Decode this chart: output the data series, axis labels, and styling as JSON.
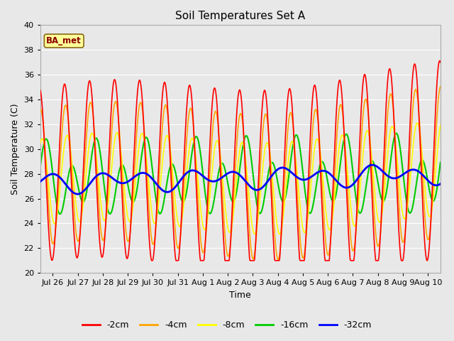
{
  "title": "Soil Temperatures Set A",
  "xlabel": "Time",
  "ylabel": "Soil Temperature (C)",
  "ylim": [
    20,
    40
  ],
  "yticks": [
    20,
    22,
    24,
    26,
    28,
    30,
    32,
    34,
    36,
    38,
    40
  ],
  "annotation": "BA_met",
  "line_colors": {
    "-2cm": "#FF0000",
    "-4cm": "#FFA500",
    "-8cm": "#FFFF00",
    "-16cm": "#00CC00",
    "-32cm": "#0000FF"
  },
  "line_widths": {
    "-2cm": 1.2,
    "-4cm": 1.2,
    "-8cm": 1.2,
    "-16cm": 1.5,
    "-32cm": 2.0
  },
  "bg_color": "#E8E8E8",
  "plot_bg_color": "#E8E8E8",
  "grid_color": "#FFFFFF",
  "xtick_labels": [
    "Jul 26",
    "Jul 27",
    "Jul 28",
    "Jul 29",
    "Jul 30",
    "Jul 31",
    "Aug 1",
    "Aug 2",
    "Aug 3",
    "Aug 4",
    "Aug 5",
    "Aug 6",
    "Aug 7",
    "Aug 8",
    "Aug 9",
    "Aug 10"
  ]
}
